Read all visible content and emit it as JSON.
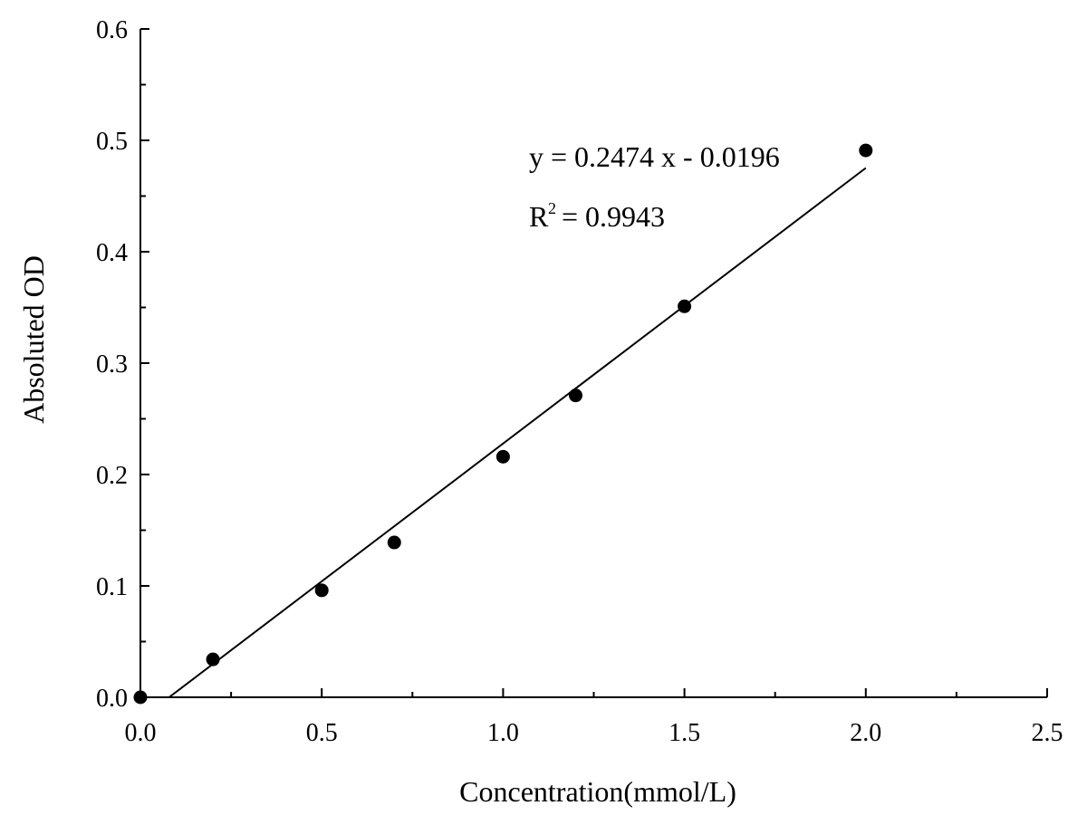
{
  "chart_data": {
    "type": "scatter",
    "title": "",
    "xlabel": "Concentration(mmol/L)",
    "ylabel": "Absoluted OD",
    "xlim": [
      0,
      2.5
    ],
    "ylim": [
      0,
      0.6
    ],
    "x_ticks": [
      0.0,
      0.5,
      1.0,
      1.5,
      2.0,
      2.5
    ],
    "x_tick_labels": [
      "0.0",
      "0.5",
      "1.0",
      "1.5",
      "2.0",
      "2.5"
    ],
    "y_ticks": [
      0.0,
      0.1,
      0.2,
      0.3,
      0.4,
      0.5,
      0.6
    ],
    "y_tick_labels": [
      "0.0",
      "0.1",
      "0.2",
      "0.3",
      "0.4",
      "0.5",
      "0.6"
    ],
    "grid": false,
    "legend": "none",
    "marker_color": "#000000",
    "line_color": "#000000",
    "series": [
      {
        "x": [
          0.0,
          0.2,
          0.5,
          0.7,
          1.0,
          1.2,
          1.5,
          2.0
        ],
        "y": [
          0.0,
          0.034,
          0.096,
          0.139,
          0.216,
          0.271,
          0.351,
          0.491
        ]
      }
    ],
    "fit": {
      "slope": 0.2474,
      "intercept": -0.0196,
      "x_range": [
        0.08,
        2.0
      ]
    },
    "annotations": {
      "equation": "y = 0.2474 x - 0.0196",
      "r_squared_prefix": "R",
      "r_squared_exponent": "2",
      "r_squared_value": " = 0.9943"
    }
  }
}
